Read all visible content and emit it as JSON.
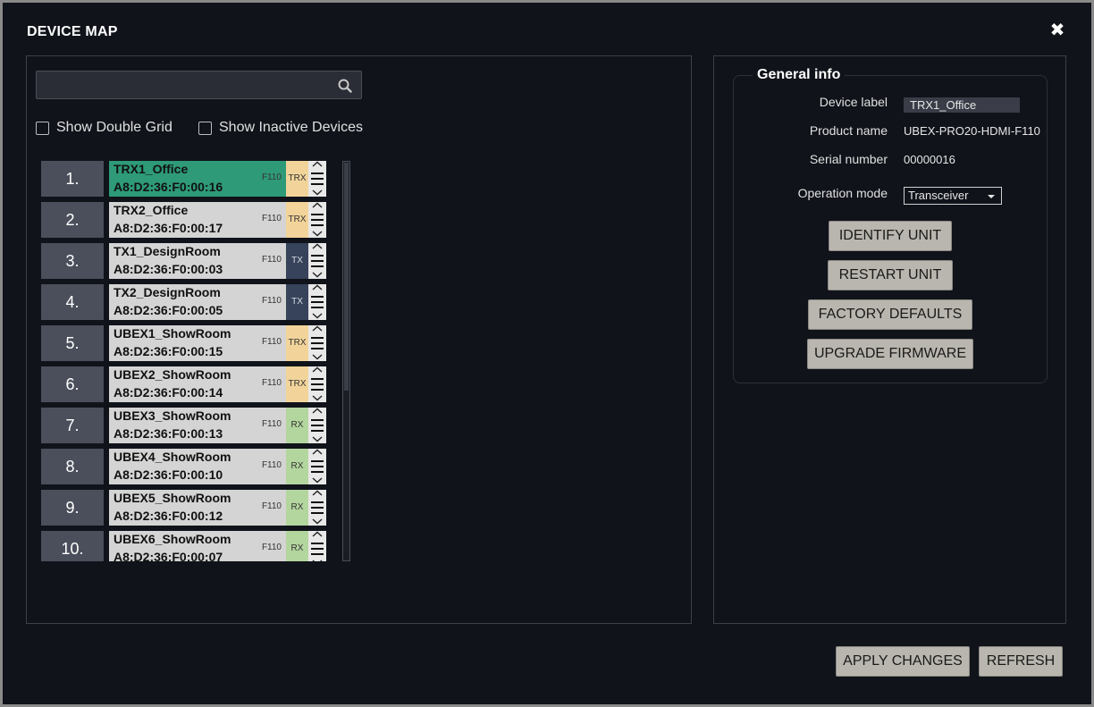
{
  "dialog": {
    "title": "DEVICE MAP",
    "close_label": "✖"
  },
  "search": {
    "value": "",
    "placeholder": ""
  },
  "options": {
    "show_double_grid": "Show Double Grid",
    "show_inactive": "Show Inactive Devices"
  },
  "devices": [
    {
      "num": "1.",
      "name": "TRX1_Office",
      "mac": "A8:D2:36:F0:00:16",
      "model": "F110",
      "type": "TRX",
      "active": true
    },
    {
      "num": "2.",
      "name": "TRX2_Office",
      "mac": "A8:D2:36:F0:00:17",
      "model": "F110",
      "type": "TRX"
    },
    {
      "num": "3.",
      "name": "TX1_DesignRoom",
      "mac": "A8:D2:36:F0:00:03",
      "model": "F110",
      "type": "TX"
    },
    {
      "num": "4.",
      "name": "TX2_DesignRoom",
      "mac": "A8:D2:36:F0:00:05",
      "model": "F110",
      "type": "TX"
    },
    {
      "num": "5.",
      "name": "UBEX1_ShowRoom",
      "mac": "A8:D2:36:F0:00:15",
      "model": "F110",
      "type": "TRX"
    },
    {
      "num": "6.",
      "name": "UBEX2_ShowRoom",
      "mac": "A8:D2:36:F0:00:14",
      "model": "F110",
      "type": "TRX"
    },
    {
      "num": "7.",
      "name": "UBEX3_ShowRoom",
      "mac": "A8:D2:36:F0:00:13",
      "model": "F110",
      "type": "RX"
    },
    {
      "num": "8.",
      "name": "UBEX4_ShowRoom",
      "mac": "A8:D2:36:F0:00:10",
      "model": "F110",
      "type": "RX"
    },
    {
      "num": "9.",
      "name": "UBEX5_ShowRoom",
      "mac": "A8:D2:36:F0:00:12",
      "model": "F110",
      "type": "RX"
    },
    {
      "num": "10.",
      "name": "UBEX6_ShowRoom",
      "mac": "A8:D2:36:F0:00:07",
      "model": "F110",
      "type": "RX"
    }
  ],
  "info": {
    "legend": "General info",
    "device_label_lbl": "Device label",
    "device_label": "TRX1_Office",
    "product_name_lbl": "Product name",
    "product_name": "UBEX-PRO20-HDMI-F110",
    "serial_lbl": "Serial number",
    "serial": "00000016",
    "op_mode_lbl": "Operation mode",
    "op_mode": "Transceiver",
    "identify": "IDENTIFY UNIT",
    "restart": "RESTART UNIT",
    "factory": "FACTORY DEFAULTS",
    "upgrade": "UPGRADE FIRMWARE"
  },
  "footer": {
    "apply": "APPLY CHANGES",
    "refresh": "REFRESH"
  },
  "colors": {
    "active": "#2e9a78",
    "trx": "#f2d49a",
    "tx": "#36435a",
    "rx": "#b3d59e"
  }
}
